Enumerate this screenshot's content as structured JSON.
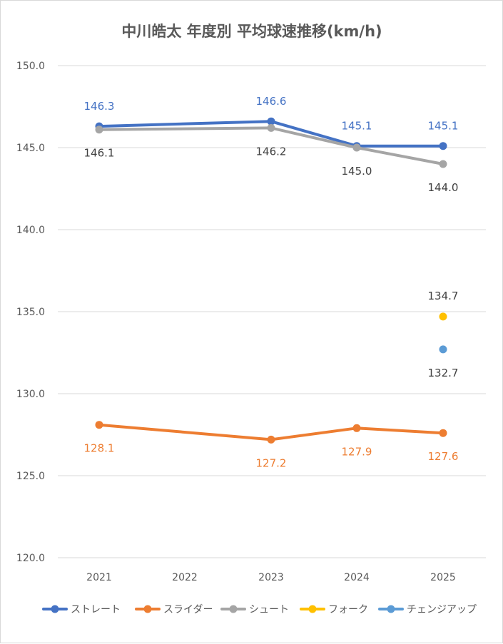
{
  "chart_data": {
    "type": "line",
    "title": "中川皓太 年度別 平均球速推移(km/h)",
    "xlabel": "",
    "ylabel": "",
    "categories": [
      "2021",
      "2022",
      "2023",
      "2024",
      "2025"
    ],
    "ylim": [
      120.0,
      150.0
    ],
    "yticks": [
      "150.0",
      "145.0",
      "140.0",
      "135.0",
      "130.0",
      "125.0",
      "120.0"
    ],
    "grid": true,
    "legend_position": "bottom",
    "series": [
      {
        "name": "ストレート",
        "color": "#4472C4",
        "values": [
          146.3,
          null,
          146.6,
          145.1,
          145.1
        ],
        "labels": [
          "146.3",
          "",
          "146.6",
          "145.1",
          "145.1"
        ]
      },
      {
        "name": "スライダー",
        "color": "#ED7D31",
        "values": [
          128.1,
          null,
          127.2,
          127.9,
          127.6
        ],
        "labels": [
          "128.1",
          "",
          "127.2",
          "127.9",
          "127.6"
        ]
      },
      {
        "name": "シュート",
        "color": "#A5A5A5",
        "values": [
          146.1,
          null,
          146.2,
          145.0,
          144.0
        ],
        "labels": [
          "146.1",
          "",
          "146.2",
          "145.0",
          "144.0"
        ]
      },
      {
        "name": "フォーク",
        "color": "#FFC000",
        "values": [
          null,
          null,
          null,
          null,
          134.7
        ],
        "labels": [
          "",
          "",
          "",
          "",
          "134.7"
        ]
      },
      {
        "name": "チェンジアップ",
        "color": "#5B9BD5",
        "values": [
          null,
          null,
          null,
          null,
          132.7
        ],
        "labels": [
          "",
          "",
          "",
          "",
          "132.7"
        ]
      }
    ]
  }
}
